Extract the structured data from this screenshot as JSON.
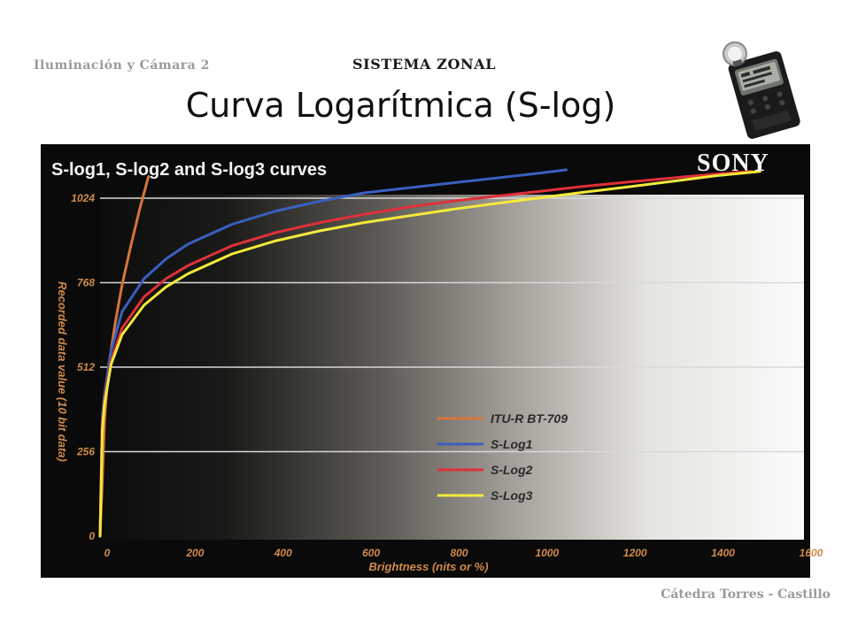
{
  "header": {
    "course": "Iluminación  y Cámara 2",
    "section": "SISTEMA ZONAL",
    "title": "Curva Logarítmica (S-log)"
  },
  "footer": {
    "credit": "Cátedra Torres - Castillo"
  },
  "decor": {
    "meter_image": "light-meter-icon"
  },
  "chart_data": {
    "type": "line",
    "title": "S-log1, S-log2 and S-log3 curves",
    "brand": "SONY",
    "xlabel": "Brightness (nits or %)",
    "ylabel": "Recorded data value (10 bit data)",
    "xlim": [
      0,
      1600
    ],
    "ylim": [
      0,
      1024
    ],
    "xticks": [
      0,
      200,
      400,
      600,
      800,
      1000,
      1200,
      1400,
      1600
    ],
    "yticks": [
      0,
      256,
      512,
      768,
      1024
    ],
    "grid": true,
    "legend_position": "lower-right",
    "series": [
      {
        "name": "ITU-R BT-709",
        "color": "#d8743a",
        "x": [
          0,
          5,
          10,
          20,
          35,
          50,
          70,
          90,
          110
        ],
        "y": [
          0,
          160,
          350,
          520,
          650,
          760,
          880,
          990,
          1090
        ]
      },
      {
        "name": "S-Log1",
        "color": "#3a5fbf",
        "x": [
          0,
          5,
          10,
          25,
          50,
          100,
          150,
          200,
          300,
          400,
          500,
          600,
          700,
          800,
          900,
          1000,
          1060
        ],
        "y": [
          0,
          360,
          430,
          560,
          680,
          780,
          840,
          885,
          945,
          985,
          1015,
          1040,
          1055,
          1070,
          1085,
          1100,
          1110
        ]
      },
      {
        "name": "S-Log2",
        "color": "#e0303a",
        "x": [
          0,
          5,
          10,
          25,
          50,
          100,
          150,
          200,
          300,
          400,
          500,
          600,
          700,
          800,
          900,
          1000,
          1100,
          1200,
          1300,
          1400,
          1480
        ],
        "y": [
          0,
          340,
          410,
          530,
          630,
          725,
          780,
          820,
          880,
          920,
          950,
          975,
          997,
          1015,
          1030,
          1045,
          1060,
          1073,
          1085,
          1097,
          1105
        ]
      },
      {
        "name": "S-Log3",
        "color": "#f2ea3a",
        "x": [
          0,
          5,
          10,
          25,
          50,
          100,
          150,
          200,
          300,
          400,
          500,
          600,
          700,
          800,
          900,
          1000,
          1100,
          1200,
          1300,
          1400,
          1500
        ],
        "y": [
          0,
          320,
          400,
          520,
          610,
          700,
          755,
          795,
          855,
          895,
          925,
          950,
          970,
          990,
          1008,
          1025,
          1042,
          1058,
          1075,
          1092,
          1105
        ]
      }
    ]
  }
}
